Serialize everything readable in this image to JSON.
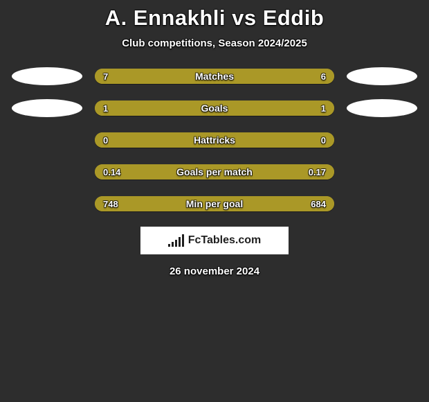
{
  "background_color": "#2d2d2d",
  "title": {
    "text": "A. Ennakhli vs Eddib",
    "color": "#ffffff",
    "fontsize": 31
  },
  "subtitle": {
    "text": "Club competitions, Season 2024/2025",
    "color": "#ffffff",
    "fontsize": 15
  },
  "ellipse_color": "#ffffff",
  "left_color": "#aa9827",
  "right_color": "#aa9827",
  "bar_bg": "#aa9827",
  "text_color": "#ffffff",
  "rows": [
    {
      "label": "Matches",
      "left_val": "7",
      "right_val": "6",
      "left_w": 53.8,
      "show_left_ellipse": true,
      "show_right_ellipse": true
    },
    {
      "label": "Goals",
      "left_val": "1",
      "right_val": "1",
      "left_w": 50.0,
      "show_left_ellipse": true,
      "show_right_ellipse": true
    },
    {
      "label": "Hattricks",
      "left_val": "0",
      "right_val": "0",
      "left_w": 50.0,
      "show_left_ellipse": false,
      "show_right_ellipse": false
    },
    {
      "label": "Goals per match",
      "left_val": "0.14",
      "right_val": "0.17",
      "left_w": 45.2,
      "show_left_ellipse": false,
      "show_right_ellipse": false
    },
    {
      "label": "Min per goal",
      "left_val": "748",
      "right_val": "684",
      "left_w": 52.2,
      "show_left_ellipse": false,
      "show_right_ellipse": false
    }
  ],
  "brand": {
    "text": "FcTables.com",
    "box_bg": "#ffffff",
    "bars": [
      4,
      7,
      10,
      14,
      18
    ]
  },
  "date": {
    "text": "26 november 2024",
    "color": "#ffffff",
    "fontsize": 15
  }
}
